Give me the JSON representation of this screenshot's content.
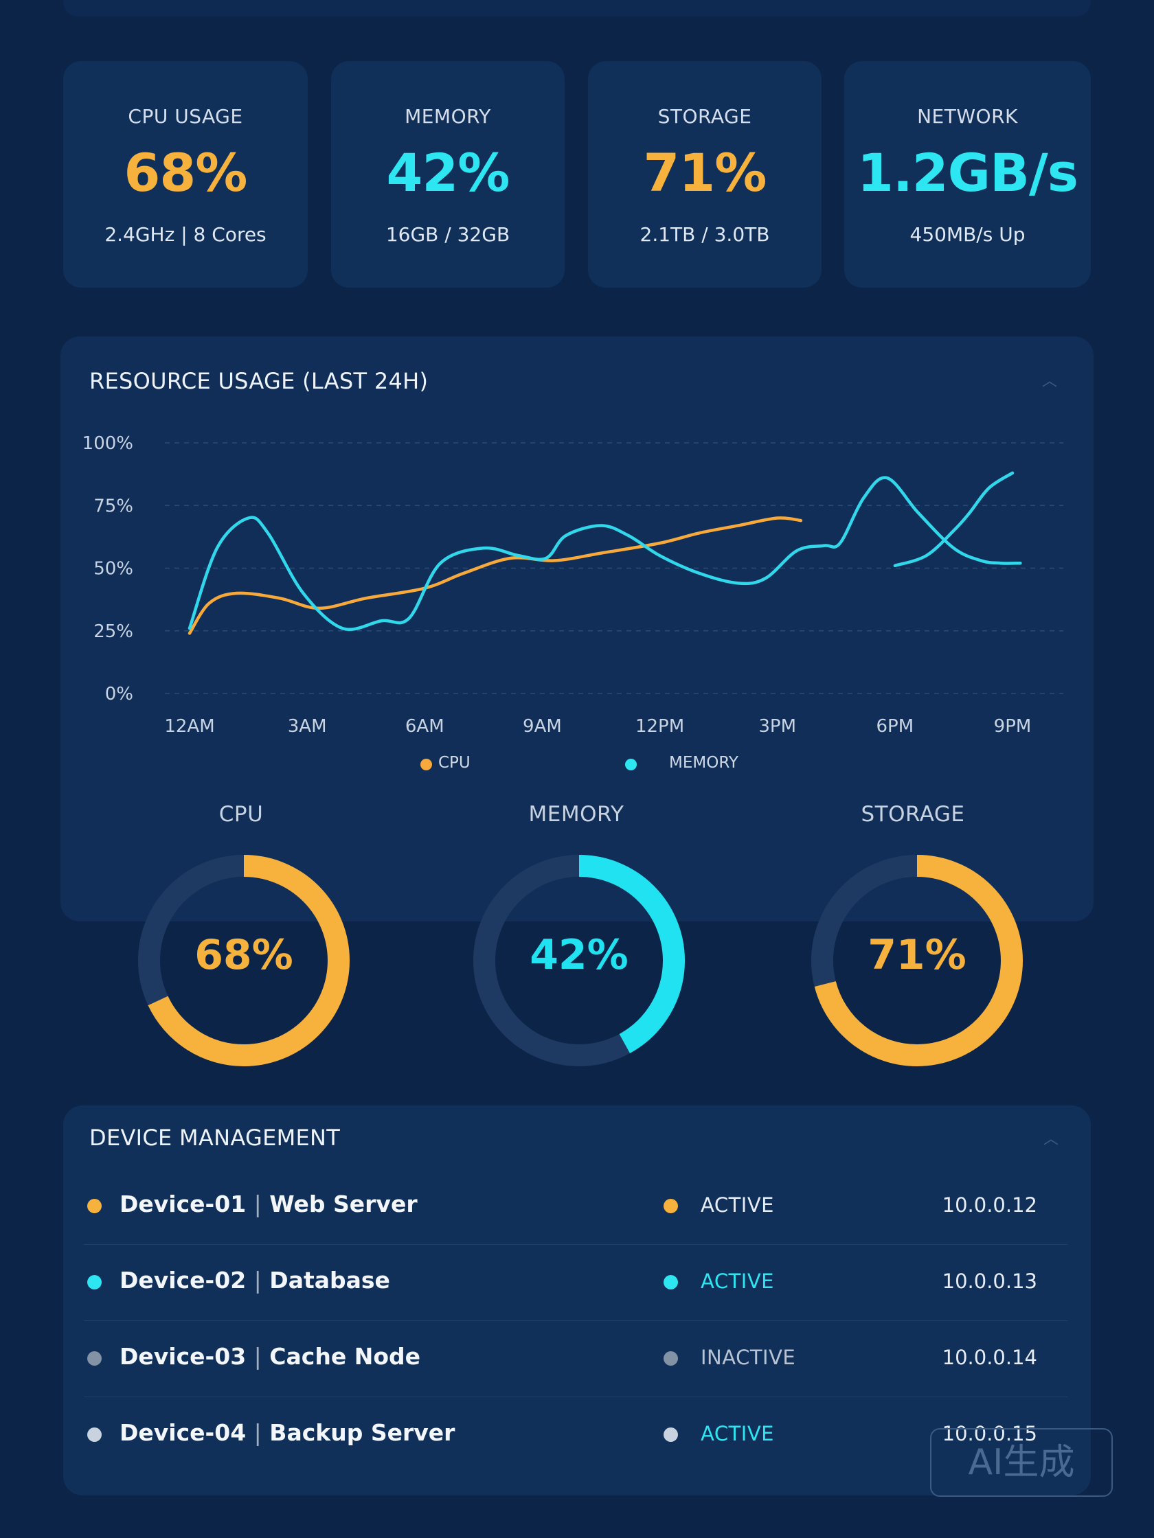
{
  "stats": [
    {
      "label": "CPU USAGE",
      "value": "68%",
      "sub": "2.4GHz | 8 Cores",
      "color": "#f7b23d"
    },
    {
      "label": "MEMORY",
      "value": "42%",
      "sub": "16GB / 32GB",
      "color": "#2ee6f2"
    },
    {
      "label": "STORAGE",
      "value": "71%",
      "sub": "2.1TB / 3.0TB",
      "color": "#f7b23d"
    },
    {
      "label": "NETWORK",
      "value": "1.2GB/s",
      "sub": "450MB/s Up",
      "color": "#2ee6f2"
    }
  ],
  "usage_panel": {
    "title": "RESOURCE USAGE (LAST 24H)",
    "collapse_icon": "chevron-up-icon"
  },
  "chart_data": {
    "type": "line",
    "title": "RESOURCE USAGE (LAST 24H)",
    "x_labels": [
      "12AM",
      "3AM",
      "6AM",
      "9AM",
      "12PM",
      "3PM",
      "6PM",
      "9PM"
    ],
    "y_labels": [
      "100%",
      "75%",
      "50%",
      "25%",
      "0%"
    ],
    "y_range": [
      0,
      100
    ],
    "x_range": [
      0,
      21
    ],
    "grid": true,
    "legend_position": "bottom",
    "series": [
      {
        "name": "CPU",
        "color": "#f7a93b",
        "points": [
          [
            0,
            24
          ],
          [
            0.5,
            36
          ],
          [
            1.2,
            40
          ],
          [
            2.3,
            38
          ],
          [
            3.3,
            34
          ],
          [
            4.5,
            38
          ],
          [
            6,
            42
          ],
          [
            7,
            48
          ],
          [
            8.2,
            54
          ],
          [
            9.3,
            53
          ],
          [
            10.5,
            56
          ],
          [
            12,
            60
          ],
          [
            13,
            64
          ],
          [
            14,
            67
          ],
          [
            15,
            70
          ],
          [
            15.6,
            69
          ]
        ]
      },
      {
        "name": "MEMORY",
        "color": "#31d8ec",
        "points": [
          [
            0,
            26
          ],
          [
            0.7,
            58
          ],
          [
            1.5,
            70
          ],
          [
            2,
            64
          ],
          [
            2.9,
            40
          ],
          [
            3.9,
            26
          ],
          [
            4.9,
            29
          ],
          [
            5.6,
            30
          ],
          [
            6.4,
            52
          ],
          [
            7.5,
            58
          ],
          [
            8.4,
            55
          ],
          [
            9.1,
            54
          ],
          [
            9.6,
            63
          ],
          [
            10.5,
            67
          ],
          [
            11.2,
            63
          ],
          [
            12,
            55
          ],
          [
            13,
            48
          ],
          [
            14,
            44
          ],
          [
            14.7,
            46
          ],
          [
            15.5,
            57
          ],
          [
            16.2,
            59
          ],
          [
            16.6,
            60
          ],
          [
            17.2,
            78
          ],
          [
            17.8,
            86
          ],
          [
            18.6,
            72
          ],
          [
            19.5,
            58
          ],
          [
            20.2,
            53
          ],
          [
            20.7,
            52
          ],
          [
            21.2,
            52
          ]
        ]
      },
      {
        "name": "",
        "color": "#31d8ec",
        "points": [
          [
            18,
            51
          ],
          [
            18.8,
            55
          ],
          [
            19.5,
            65
          ],
          [
            19.9,
            72
          ],
          [
            20.4,
            82
          ],
          [
            21,
            88
          ]
        ]
      }
    ]
  },
  "legend": [
    {
      "label": "CPU",
      "color": "#f7a93b"
    },
    {
      "label": "MEMORY",
      "color": "#2ee6f2"
    }
  ],
  "donuts": [
    {
      "title": "CPU",
      "value": "68%",
      "fraction": 0.68,
      "color": "#f7b23d"
    },
    {
      "title": "MEMORY",
      "value": "42%",
      "fraction": 0.42,
      "color": "#20e2f0"
    },
    {
      "title": "STORAGE",
      "value": "71%",
      "fraction": 0.71,
      "color": "#f7b23d"
    }
  ],
  "devices_panel": {
    "title": "DEVICE MANAGEMENT",
    "collapse_icon": "chevron-up-icon"
  },
  "devices": [
    {
      "id": "Device-01",
      "role": "Web Server",
      "dot_color": "#f7b23d",
      "status": "ACTIVE",
      "status_color": "#e6ecf3",
      "status_dot": "#f7b23d",
      "ip": "10.0.0.12"
    },
    {
      "id": "Device-02",
      "role": "Database",
      "dot_color": "#2ee6f2",
      "status": "ACTIVE",
      "status_color": "#2ee6f2",
      "status_dot": "#2ee6f2",
      "ip": "10.0.0.13"
    },
    {
      "id": "Device-03",
      "role": "Cache Node",
      "dot_color": "#8492a6",
      "status": "INACTIVE",
      "status_color": "#b8c4d4",
      "status_dot": "#8492a6",
      "ip": "10.0.0.14"
    },
    {
      "id": "Device-04",
      "role": "Backup Server",
      "dot_color": "#c9d3df",
      "status": "ACTIVE",
      "status_color": "#2ee6f2",
      "status_dot": "#c9d3df",
      "ip": "10.0.0.15"
    }
  ],
  "watermark": "AI生成"
}
